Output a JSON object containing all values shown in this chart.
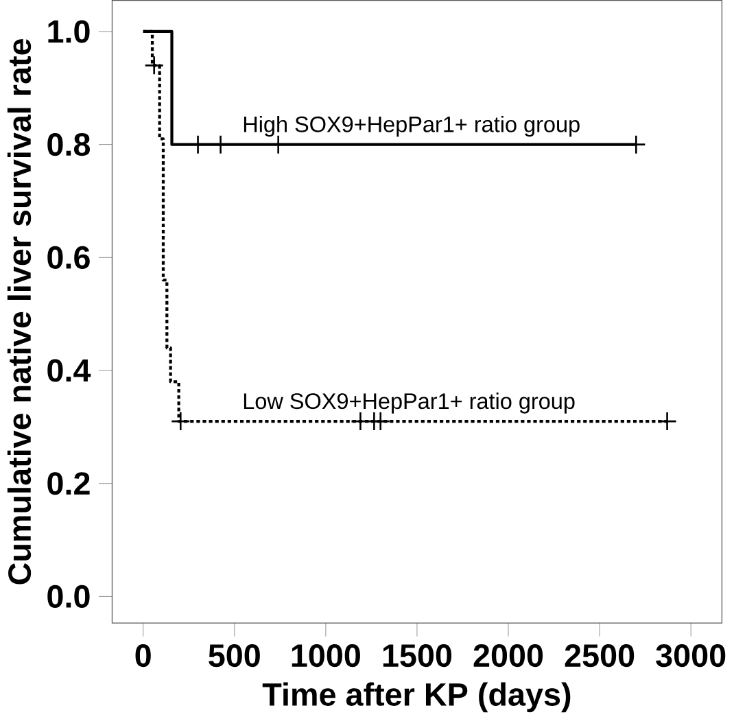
{
  "chart_data": {
    "type": "step",
    "xlabel": "Time after KP (days)",
    "ylabel": "Cumulative native liver survival rate",
    "xlim": [
      -170,
      3170
    ],
    "ylim": [
      -0.047,
      1.055
    ],
    "xticks": [
      0,
      500,
      1000,
      1500,
      2000,
      2500,
      3000
    ],
    "yticks": [
      {
        "value": 0,
        "label": "0.0"
      },
      {
        "value": 0.2,
        "label": "0.2"
      },
      {
        "value": 0.4,
        "label": "0.4"
      },
      {
        "value": 0.6,
        "label": "0.6"
      },
      {
        "value": 0.8,
        "label": "0.8"
      },
      {
        "value": 1,
        "label": "1.0"
      }
    ],
    "grid": false,
    "legend": false,
    "series": [
      {
        "name": "High SOX9+HepPar1+ ratio group",
        "color": "#000000",
        "line_style": "solid",
        "x": [
          0,
          157,
          2700
        ],
        "values": [
          1,
          0.8,
          0.8
        ]
      },
      {
        "name": "Low SOX9+HepPar1+ ratio group",
        "color": "#000000",
        "line_style": "dotted",
        "x": [
          0,
          50,
          90,
          110,
          130,
          150,
          195,
          2870
        ],
        "values": [
          1,
          0.94,
          0.81,
          0.56,
          0.44,
          0.38,
          0.31,
          0.31
        ]
      },
      {
        "type": "scatter",
        "color": "#000000",
        "marker": "cross",
        "x": [
          300,
          424,
          740,
          2700
        ],
        "values": [
          0.8,
          0.8,
          0.8,
          0.8
        ]
      },
      {
        "type": "scatter",
        "color": "#000000",
        "marker": "cross",
        "x": [
          60,
          205,
          1190,
          1265,
          1300,
          2870
        ],
        "values": [
          0.94,
          0.31,
          0.31,
          0.31,
          0.31,
          0.31
        ]
      }
    ]
  }
}
